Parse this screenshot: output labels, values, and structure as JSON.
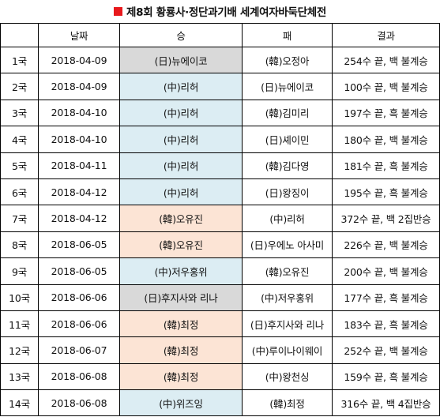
{
  "title": "제8회 황룡사·정단과기배 세계여자바둑단체전",
  "headers": [
    "",
    "날짜",
    "승",
    "패",
    "결과"
  ],
  "rows": [
    {
      "round": "1국",
      "date": "2018-04-09",
      "winner": "(日)뉴에이코",
      "loser": "(韓)오정아",
      "result": "254수 끝, 백 불계승",
      "winner_bg": "gray"
    },
    {
      "round": "2국",
      "date": "2018-04-09",
      "winner": "(中)리허",
      "loser": "(日)뉴에이코",
      "result": "100수 끝, 백 불계승",
      "winner_bg": "blue"
    },
    {
      "round": "3국",
      "date": "2018-04-10",
      "winner": "(中)리허",
      "loser": "(韓)김미리",
      "result": "197수 끝, 흑 불계승",
      "winner_bg": "blue"
    },
    {
      "round": "4국",
      "date": "2018-04-10",
      "winner": "(中)리허",
      "loser": "(日)셰이민",
      "result": "180수 끝, 백 불계승",
      "winner_bg": "blue"
    },
    {
      "round": "5국",
      "date": "2018-04-11",
      "winner": "(中)리허",
      "loser": "(韓)김다영",
      "result": "181수 끝, 흑 불계승",
      "winner_bg": "blue"
    },
    {
      "round": "6국",
      "date": "2018-04-12",
      "winner": "(中)리허",
      "loser": "(日)왕징이",
      "result": "195수 끝, 흑 불계승",
      "winner_bg": "blue"
    },
    {
      "round": "7국",
      "date": "2018-04-12",
      "winner": "(韓)오유진",
      "loser": "(中)리허",
      "result": "372수 끝, 백 2집반승",
      "winner_bg": "peach"
    },
    {
      "round": "8국",
      "date": "2018-06-05",
      "winner": "(韓)오유진",
      "loser": "(日)우에노 아사미",
      "result": "226수 끝, 백 불계승",
      "winner_bg": "peach"
    },
    {
      "round": "9국",
      "date": "2018-06-05",
      "winner": "(中)저우홍위",
      "loser": "(韓)오유진",
      "result": "200수 끝, 백 불계승",
      "winner_bg": "blue"
    },
    {
      "round": "10국",
      "date": "2018-06-06",
      "winner": "(日)후지사와 리나",
      "loser": "(中)저우홍위",
      "result": "177수 끝, 흑 불계승",
      "winner_bg": "gray"
    },
    {
      "round": "11국",
      "date": "2018-06-06",
      "winner": "(韓)최정",
      "loser": "(日)후지사와 리나",
      "result": "183수 끝, 흑 불계승",
      "winner_bg": "peach"
    },
    {
      "round": "12국",
      "date": "2018-06-07",
      "winner": "(韓)최정",
      "loser": "(中)루이나이웨이",
      "result": "252수 끝, 백 불계승",
      "winner_bg": "peach"
    },
    {
      "round": "13국",
      "date": "2018-06-08",
      "winner": "(韓)최정",
      "loser": "(中)왕천싱",
      "result": "159수 끝, 흑 불계승",
      "winner_bg": "peach"
    },
    {
      "round": "14국",
      "date": "2018-06-08",
      "winner": "(中)위즈잉",
      "loser": "(韓)최정",
      "result": "316수 끝, 백 4집반승",
      "winner_bg": "blue"
    }
  ],
  "colors": {
    "title_square": "#e8191c",
    "blue": "#dcedf3",
    "peach": "#fce4d5",
    "gray": "#d9d9d9"
  }
}
